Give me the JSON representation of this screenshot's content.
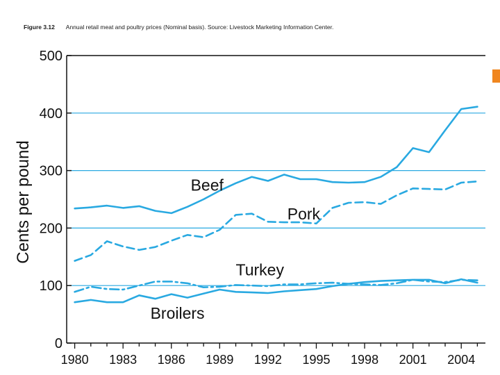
{
  "caption": {
    "figure_label": "Figure 3.12",
    "text": "Annual retail meat and poultry prices (Nominal basis). Source: Livestock Marketing Information Center."
  },
  "colors": {
    "series": "#29a9e1",
    "grid": "#29a9e1",
    "accent": "#f0861f",
    "axis": "#111111"
  },
  "chart_data": {
    "type": "line",
    "title": "Annual retail meat and poultry prices (Nominal basis). Source: Livestock Marketing Information Center.",
    "ylabel": "Cents per pound",
    "xlabel": "",
    "xlim": [
      1979.5,
      2005.5
    ],
    "ylim": [
      0,
      500
    ],
    "yticks": [
      0,
      100,
      200,
      300,
      400,
      500
    ],
    "xticks": [
      1980,
      1983,
      1986,
      1989,
      1992,
      1995,
      1998,
      2001,
      2004
    ],
    "grid": "horizontal",
    "legend": "inline labels",
    "series": [
      {
        "name": "Beef",
        "style": "solid",
        "x": [
          1980,
          1981,
          1982,
          1983,
          1984,
          1985,
          1986,
          1987,
          1988,
          1989,
          1990,
          1991,
          1992,
          1993,
          1994,
          1995,
          1996,
          1997,
          1998,
          1999,
          2000,
          2001,
          2002,
          2003,
          2004,
          2005
        ],
        "values": [
          234,
          236,
          239,
          235,
          238,
          230,
          226,
          237,
          250,
          265,
          278,
          289,
          282,
          293,
          285,
          285,
          280,
          279,
          280,
          289,
          306,
          339,
          332,
          370,
          407,
          411
        ]
      },
      {
        "name": "Pork",
        "style": "dashed",
        "x": [
          1980,
          1981,
          1982,
          1983,
          1984,
          1985,
          1986,
          1987,
          1988,
          1989,
          1990,
          1991,
          1992,
          1993,
          1994,
          1995,
          1996,
          1997,
          1998,
          1999,
          2000,
          2001,
          2002,
          2003,
          2004,
          2005
        ],
        "values": [
          143,
          153,
          177,
          168,
          162,
          167,
          178,
          188,
          184,
          197,
          223,
          225,
          211,
          210,
          210,
          208,
          235,
          244,
          245,
          242,
          257,
          269,
          268,
          267,
          279,
          281
        ]
      },
      {
        "name": "Turkey",
        "style": "dash-dot",
        "x": [
          1980,
          1981,
          1982,
          1983,
          1984,
          1985,
          1986,
          1987,
          1988,
          1989,
          1990,
          1991,
          1992,
          1993,
          1994,
          1995,
          1996,
          1997,
          1998,
          1999,
          2000,
          2001,
          2002,
          2003,
          2004,
          2005
        ],
        "values": [
          89,
          98,
          94,
          93,
          100,
          107,
          107,
          104,
          97,
          98,
          101,
          100,
          99,
          102,
          102,
          104,
          105,
          103,
          102,
          101,
          104,
          110,
          107,
          106,
          110,
          109
        ]
      },
      {
        "name": "Broilers",
        "style": "solid",
        "x": [
          1980,
          1981,
          1982,
          1983,
          1984,
          1985,
          1986,
          1987,
          1988,
          1989,
          1990,
          1991,
          1992,
          1993,
          1994,
          1995,
          1996,
          1997,
          1998,
          1999,
          2000,
          2001,
          2002,
          2003,
          2004,
          2005
        ],
        "values": [
          71,
          75,
          71,
          71,
          83,
          77,
          85,
          79,
          86,
          93,
          89,
          88,
          87,
          90,
          92,
          94,
          99,
          103,
          106,
          108,
          109,
          110,
          110,
          104,
          111,
          105
        ]
      }
    ],
    "annotations": [
      {
        "text": "Beef",
        "x": 1987.2,
        "y": 265
      },
      {
        "text": "Pork",
        "x": 1993.2,
        "y": 215
      },
      {
        "text": "Turkey",
        "x": 1990.0,
        "y": 118
      },
      {
        "text": "Broilers",
        "x": 1984.7,
        "y": 42
      }
    ]
  }
}
